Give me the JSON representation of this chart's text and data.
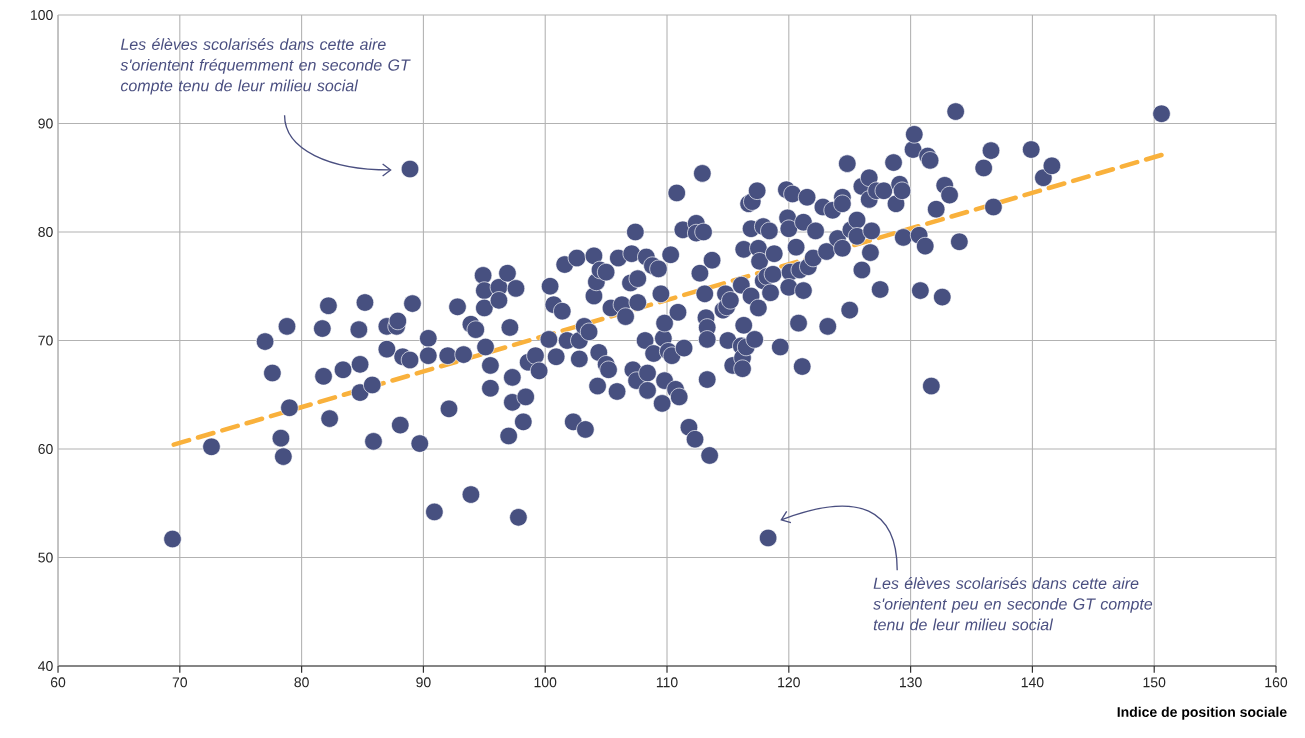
{
  "chart_data": {
    "type": "scatter",
    "xlabel": "Indice de position sociale",
    "annotations": [
      "Les élèves scolarisés dans cette aire s'orientent fréquemment en seconde GT compte tenu de leur milieu social",
      "Les élèves scolarisés dans cette aire s'orientent peu en seconde GT compte tenu de leur milieu social"
    ],
    "series": [
      {
        "color": "#475080",
        "x": [
          69.4,
          72.6,
          77,
          77.6,
          78.3,
          78.5,
          78.8,
          79,
          81.7,
          81.8,
          82.2,
          82.3,
          83.4,
          84.7,
          84.8,
          84.8,
          85.2,
          85.8,
          85.9,
          87,
          87,
          87.8,
          87.9,
          88.1,
          88.3,
          88.9,
          89.1,
          89.7,
          90.4,
          90.4,
          90.9,
          92,
          92.1,
          92.8,
          93.3,
          93.9,
          93.9,
          94.3,
          94.9,
          95,
          95,
          95.1,
          95.5,
          95.5,
          96.2,
          96.2,
          96.9,
          97,
          97.1,
          97.3,
          97.3,
          97.6,
          97.8,
          98.2,
          98.4,
          98.6,
          99.2,
          99.5,
          100.4,
          100.3,
          100.7,
          100.9,
          101.4,
          101.6,
          101.8,
          102.3,
          102.6,
          102.8,
          102.8,
          103.2,
          103.3,
          103.6,
          104,
          104,
          104.2,
          104.3,
          104.4,
          104.5,
          105,
          105,
          105.2,
          105.4,
          105.9,
          106,
          106.3,
          106.6,
          107,
          107.1,
          107.2,
          107.4,
          107.5,
          107.6,
          107.6,
          108.2,
          108.3,
          108.4,
          108.4,
          108.8,
          108.9,
          109.3,
          109.5,
          109.6,
          109.7,
          109.8,
          109.8,
          110.1,
          110.3,
          110.4,
          110.7,
          110.8,
          110.9,
          111,
          111.3,
          111.4,
          111.8,
          112.3,
          112.4,
          112.4,
          112.7,
          112.9,
          113,
          113.1,
          113.2,
          113.3,
          113.3,
          113.3,
          113.5,
          113.7,
          114.6,
          114.8,
          114.9,
          115,
          115.2,
          115.4,
          116.1,
          116.1,
          116.2,
          116.2,
          116.3,
          116.3,
          116.5,
          116.7,
          116.9,
          116.9,
          117,
          117.2,
          117.4,
          117.5,
          117.5,
          117.6,
          117.9,
          117.9,
          118.2,
          118.4,
          118.5,
          118.7,
          118.8,
          119.3,
          119.8,
          119.9,
          120,
          120.1,
          120,
          120.3,
          120.6,
          120.8,
          120.9,
          121.1,
          121.2,
          121.2,
          121.5,
          121.6,
          122,
          122.2,
          122.8,
          123.1,
          123.2,
          123.6,
          124,
          124.4,
          124.4,
          124.4,
          124.8,
          125,
          125.1,
          125.6,
          125.6,
          126,
          126,
          126.6,
          126.6,
          126.7,
          126.8,
          127.2,
          127.5,
          127.8,
          128.6,
          128.8,
          129.1,
          129.3,
          129.4,
          130.2,
          130.3,
          130.7,
          130.8,
          131.2,
          131.4,
          131.6,
          131.7,
          132.1,
          132.6,
          132.8,
          133.2,
          133.7,
          134,
          136,
          136.6,
          136.8,
          139.9,
          140.9,
          141.6,
          150.6,
          88.9,
          118.3
        ],
        "values": [
          51.7,
          60.2,
          69.9,
          67,
          61,
          59.3,
          71.3,
          63.8,
          71.1,
          66.7,
          73.2,
          62.8,
          67.3,
          71,
          67.8,
          65.2,
          73.5,
          65.9,
          60.7,
          71.3,
          69.2,
          71.3,
          71.8,
          62.2,
          68.5,
          68.2,
          73.4,
          60.5,
          70.2,
          68.6,
          54.2,
          68.6,
          63.7,
          73.1,
          68.7,
          71.5,
          55.8,
          71,
          76,
          74.6,
          73,
          69.4,
          65.6,
          67.7,
          74.9,
          73.7,
          76.2,
          61.2,
          71.2,
          66.6,
          64.3,
          74.8,
          53.7,
          62.5,
          64.8,
          68,
          68.6,
          67.2,
          75,
          70.1,
          73.3,
          68.5,
          72.7,
          77,
          70,
          62.5,
          77.6,
          70,
          68.3,
          71.3,
          61.8,
          70.8,
          77.8,
          74.1,
          75.4,
          65.8,
          68.9,
          76.5,
          76.3,
          67.8,
          67.3,
          73,
          65.3,
          77.6,
          73.3,
          72.2,
          75.3,
          78,
          67.3,
          80,
          66.3,
          75.7,
          73.5,
          70,
          77.7,
          67,
          65.4,
          76.9,
          68.8,
          76.6,
          74.3,
          64.2,
          70.2,
          71.6,
          66.3,
          69,
          77.9,
          68.6,
          65.5,
          83.6,
          72.6,
          64.8,
          80.2,
          69.3,
          62,
          60.9,
          80.8,
          79.9,
          76.2,
          85.4,
          80,
          74.3,
          72.1,
          71.2,
          70.1,
          66.4,
          59.4,
          77.4,
          72.8,
          74.3,
          73.1,
          70,
          73.7,
          67.7,
          75.1,
          69.5,
          68.4,
          67.4,
          71.4,
          78.4,
          69.4,
          82.6,
          80.3,
          74.1,
          82.8,
          70.1,
          83.8,
          73,
          78.5,
          77.3,
          80.5,
          75.5,
          75.9,
          80.1,
          74.4,
          76.1,
          78,
          69.4,
          83.9,
          81.3,
          80.3,
          76.3,
          74.9,
          83.5,
          78.6,
          71.6,
          76.5,
          67.6,
          80.9,
          74.6,
          83.2,
          76.8,
          77.6,
          80.1,
          82.3,
          78.2,
          71.3,
          82,
          79.4,
          83.2,
          82.6,
          78.5,
          86.3,
          72.8,
          80.2,
          81.1,
          79.6,
          84.2,
          76.5,
          85,
          83,
          78.1,
          80.1,
          83.8,
          74.7,
          83.8,
          86.4,
          82.6,
          84.4,
          83.8,
          79.5,
          87.6,
          89,
          79.7,
          74.6,
          78.7,
          87,
          86.6,
          65.8,
          82.1,
          74,
          84.3,
          83.4,
          91.1,
          79.1,
          85.9,
          87.5,
          82.3,
          87.6,
          85,
          86.1,
          90.9,
          85.8,
          51.8
        ]
      },
      {
        "type": "line",
        "marker": "none",
        "line_style": "dashed",
        "color": "#f9b13c",
        "x": [
          69.5,
          150.6
        ],
        "values": [
          60.4,
          87.1
        ]
      }
    ],
    "xlim": [
      60,
      160
    ],
    "ylim": [
      40,
      100
    ],
    "xticks": [
      60,
      70,
      80,
      90,
      100,
      110,
      120,
      130,
      140,
      150,
      160
    ],
    "yticks": [
      40,
      50,
      60,
      70,
      80,
      90,
      100
    ],
    "grid": true
  }
}
